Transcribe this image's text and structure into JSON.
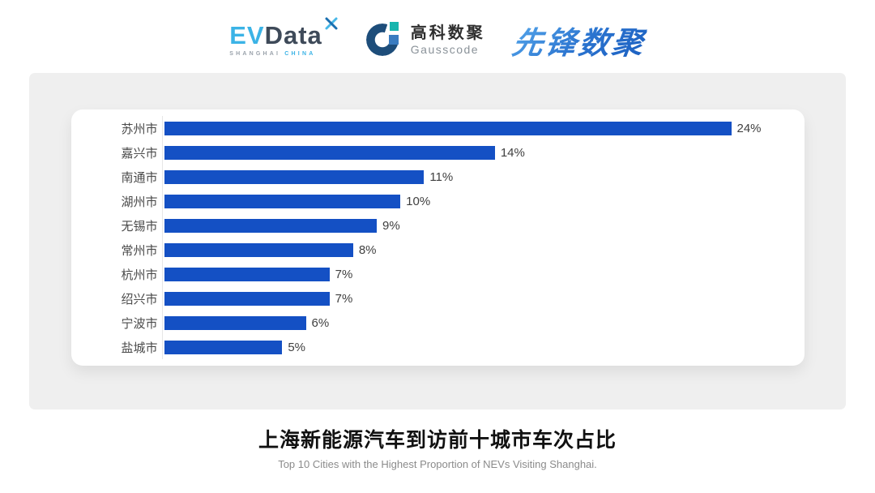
{
  "header": {
    "evdata": {
      "ev": "EV",
      "data": "Data",
      "sub_left": "SHANGHAI",
      "sub_right": "CHINA"
    },
    "gausscode": {
      "cn": "高科数聚",
      "en": "Gausscode"
    },
    "xianfeng": {
      "text": "先锋数聚"
    }
  },
  "chart_data": {
    "type": "bar",
    "orientation": "horizontal",
    "categories": [
      "苏州市",
      "嘉兴市",
      "南通市",
      "湖州市",
      "无锡市",
      "常州市",
      "杭州市",
      "绍兴市",
      "宁波市",
      "盐城市"
    ],
    "values": [
      24,
      14,
      11,
      10,
      9,
      8,
      7,
      7,
      6,
      5
    ],
    "value_labels": [
      "24%",
      "14%",
      "11%",
      "10%",
      "9%",
      "8%",
      "7%",
      "7%",
      "6%",
      "5%"
    ],
    "xlim": [
      0,
      24
    ],
    "grid": false,
    "value_label_position": "end",
    "title": "上海新能源汽车到访前十城市车次占比",
    "subtitle": "Top 10 Cities with the Highest Proportion of  NEVs Visiting Shanghai."
  },
  "caption": {
    "title": "上海新能源汽车到访前十城市车次占比",
    "subtitle": "Top 10 Cities with the Highest Proportion of  NEVs Visiting Shanghai."
  },
  "colors": {
    "bar": "#1450c4",
    "panel_bg": "#efefef",
    "card_bg": "#ffffff",
    "evdata_light_blue": "#3bb3e6",
    "evdata_dark": "#3e4a59",
    "gausscode_navy": "#1d4d7a",
    "gausscode_teal": "#17b5ae",
    "xianfeng_blue": "#2b76d2"
  }
}
